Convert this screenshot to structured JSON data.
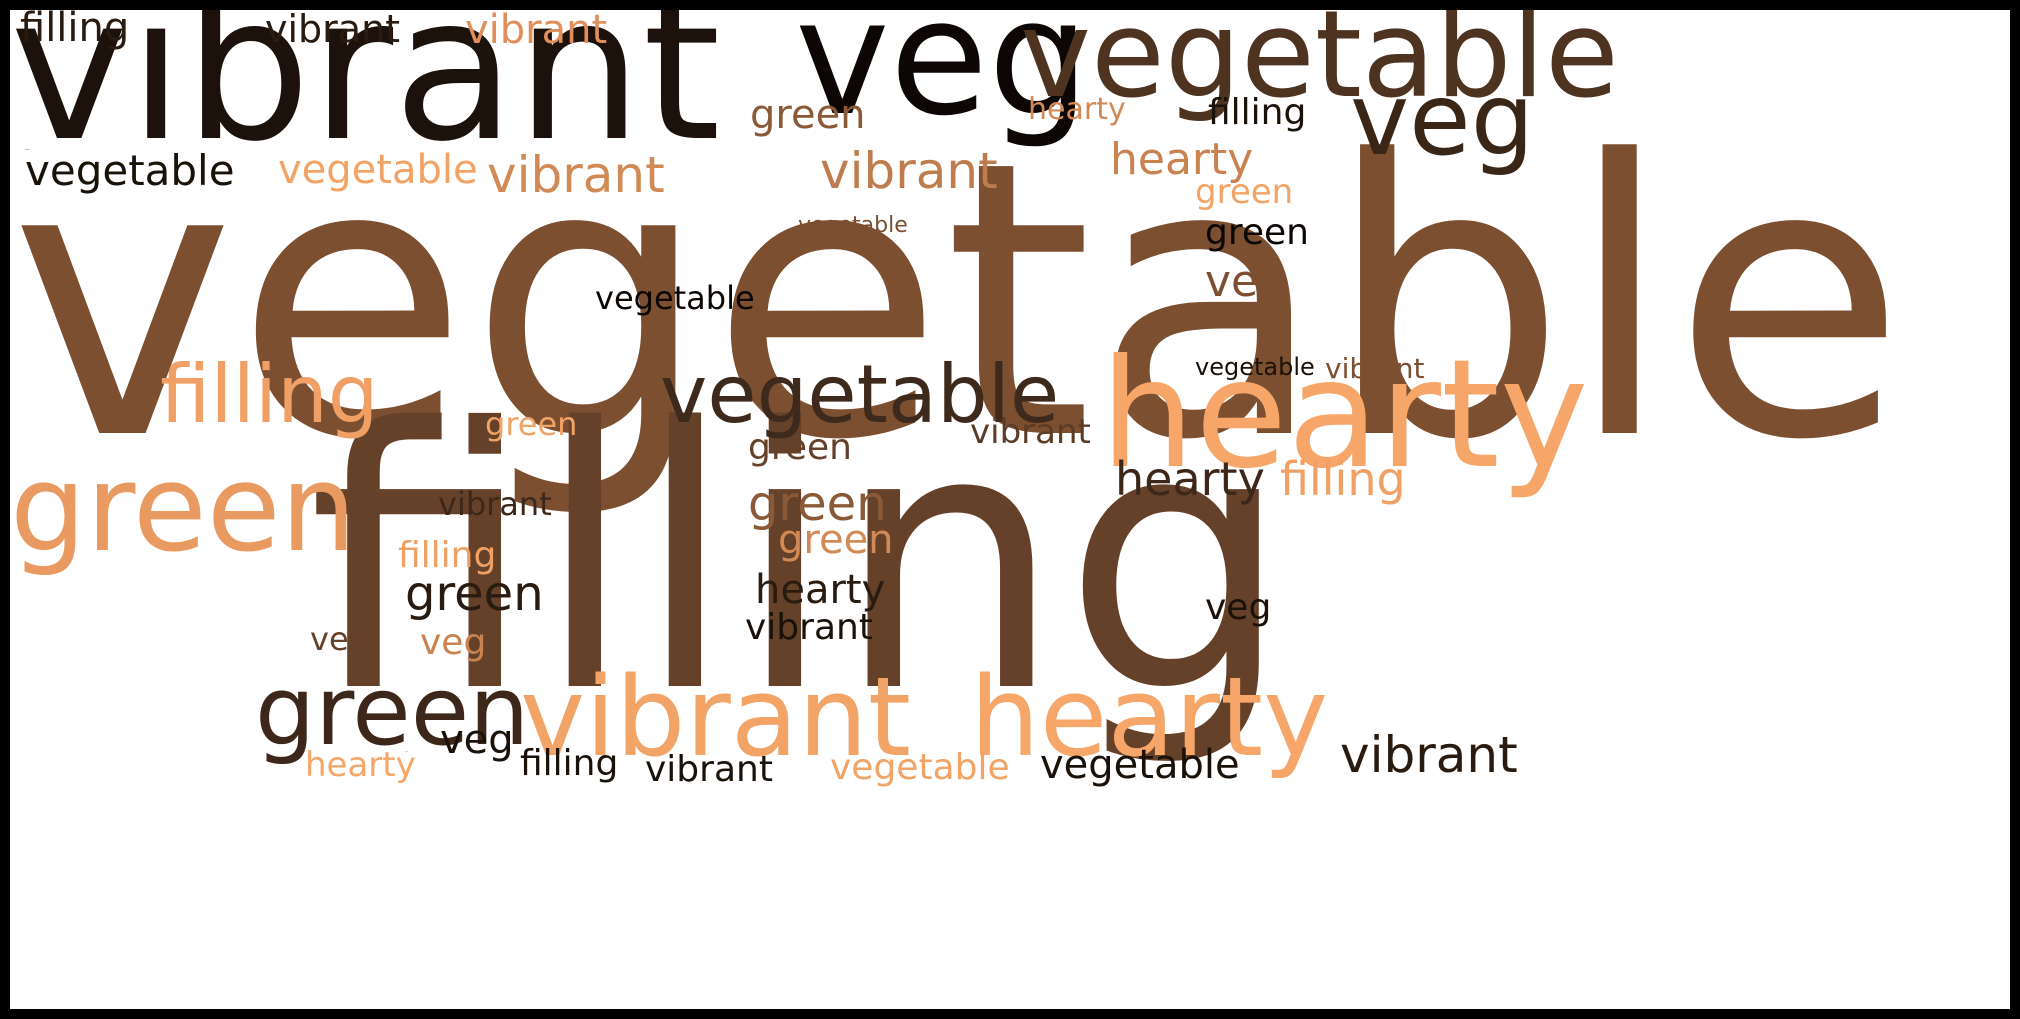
{
  "words": [
    {
      "text": "vegetable",
      "color": "#7b4f30"
    },
    {
      "text": "filling",
      "color": "#66412a"
    },
    {
      "text": "vibrant",
      "color": "#1c120b"
    },
    {
      "text": "veg",
      "color": "#0c0705"
    },
    {
      "text": "vegetable",
      "color": "#4e3320"
    },
    {
      "text": "veg",
      "color": "#3a2617"
    },
    {
      "text": "hearty",
      "color": "#f5a668"
    },
    {
      "text": "vibrant",
      "color": "#f2a366"
    },
    {
      "text": "hearty",
      "color": "#f5a668"
    },
    {
      "text": "green",
      "color": "#3c271a"
    },
    {
      "text": "vegetable",
      "color": "#3e2a1c"
    },
    {
      "text": "green",
      "color": "#e89a60"
    },
    {
      "text": "filling",
      "color": "#f0a064"
    },
    {
      "text": "vegetable",
      "color": "#1a1109"
    },
    {
      "text": "vibrant",
      "color": "#bf7d4e"
    },
    {
      "text": "vibrant",
      "color": "#2a1b10"
    },
    {
      "text": "filling",
      "color": "#1a1109"
    },
    {
      "text": "filling",
      "color": "#2a1b10"
    },
    {
      "text": "vibrant",
      "color": "#d18a56"
    },
    {
      "text": "vegetable",
      "color": "#f2a366"
    },
    {
      "text": "vibrant",
      "color": "#e08f5a"
    },
    {
      "text": "vibrant",
      "color": "#2a1b10"
    },
    {
      "text": "vegetable",
      "color": "#1a1109"
    },
    {
      "text": "vegetable",
      "color": "#0c0705"
    },
    {
      "text": "hearty",
      "color": "#3c271a"
    },
    {
      "text": "filling",
      "color": "#f0a064"
    },
    {
      "text": "green",
      "color": "#2a1b10"
    },
    {
      "text": "green",
      "color": "#8a5a38"
    },
    {
      "text": "hearty",
      "color": "#c98250"
    },
    {
      "text": "veg",
      "color": "#7b4f30"
    },
    {
      "text": "green",
      "color": "#8a5a38"
    },
    {
      "text": "vegetable",
      "color": "#1a1109"
    },
    {
      "text": "hearty",
      "color": "#2a1b10"
    },
    {
      "text": "green",
      "color": "#0c0705"
    },
    {
      "text": "green",
      "color": "#66412a"
    },
    {
      "text": "vibrant",
      "color": "#5c3c26"
    },
    {
      "text": "veg",
      "color": "#1a1109"
    },
    {
      "text": "vegetable",
      "color": "#f2a366"
    },
    {
      "text": "vegetable",
      "color": "#2a1b10"
    },
    {
      "text": "vibrant",
      "color": "#1a1109"
    },
    {
      "text": "hearty",
      "color": "#f5a668"
    },
    {
      "text": "hearty",
      "color": "#d18a56"
    },
    {
      "text": "filling",
      "color": "#1a1109"
    },
    {
      "text": "green",
      "color": "#f2a366"
    },
    {
      "text": "veg",
      "color": "#1a1109"
    },
    {
      "text": "vibrant",
      "color": "#3c271a"
    },
    {
      "text": "green",
      "color": "#d18a56"
    },
    {
      "text": "vibrant",
      "color": "#7b4f30"
    },
    {
      "text": "filling",
      "color": "#2a1b10"
    },
    {
      "text": "vibrant",
      "color": "#1a1109"
    },
    {
      "text": "veg",
      "color": "#66412a"
    },
    {
      "text": "green",
      "color": "#f2a366"
    },
    {
      "text": "vegetable",
      "color": "#7b4f30"
    },
    {
      "text": "filling",
      "color": "#f0a064"
    },
    {
      "text": "vibrant",
      "color": "#4e3320"
    },
    {
      "text": "veg",
      "color": "#c98250"
    }
  ]
}
